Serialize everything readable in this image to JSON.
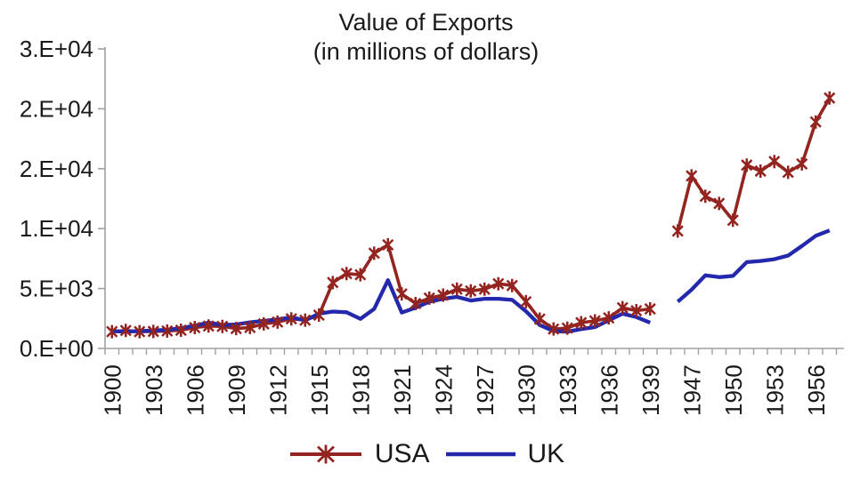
{
  "title": {
    "line1": "Value of Exports",
    "line2": "(in millions of dollars)"
  },
  "colors": {
    "usa": "#93241F",
    "uk": "#2428AC",
    "axis": "#A0A0A0",
    "text": "#1A1A1A",
    "background": "#FFFFFF"
  },
  "chart_data": {
    "type": "line",
    "title": "Value of Exports",
    "subtitle": "(in millions of dollars)",
    "grid": false,
    "legend_position": "bottom",
    "x_categories": [
      1900,
      1901,
      1902,
      1903,
      1904,
      1905,
      1906,
      1907,
      1908,
      1909,
      1910,
      1911,
      1912,
      1913,
      1914,
      1915,
      1916,
      1917,
      1918,
      1919,
      1920,
      1921,
      1922,
      1923,
      1924,
      1925,
      1926,
      1927,
      1928,
      1929,
      1930,
      1931,
      1932,
      1933,
      1934,
      1935,
      1936,
      1937,
      1938,
      1939,
      1945,
      1946,
      1947,
      1948,
      1949,
      1950,
      1951,
      1952,
      1953,
      1954,
      1955,
      1956,
      1957
    ],
    "x_label_interval": 3,
    "x_tick_labels_shown": [
      "1900",
      "1903",
      "1906",
      "1909",
      "1912",
      "1915",
      "1918",
      "1921",
      "1924",
      "1927",
      "1930",
      "1933",
      "1936",
      "1939",
      "1947",
      "1950",
      "1953",
      "1956"
    ],
    "y_axis": {
      "min": 0,
      "max": 25000,
      "tick_step": 5000,
      "tick_values": [
        0,
        5000,
        10000,
        15000,
        20000,
        25000
      ],
      "tick_labels": [
        "0.E+00",
        "5.E+03",
        "1.E+04",
        "2.E+04",
        "2.E+04",
        "3.E+04"
      ]
    },
    "series": [
      {
        "name": "USA",
        "color": "#93241F",
        "marker": "asterisk",
        "values": [
          1400,
          1500,
          1400,
          1420,
          1460,
          1520,
          1740,
          1870,
          1840,
          1660,
          1750,
          2050,
          2200,
          2470,
          2360,
          2780,
          5500,
          6250,
          6150,
          7950,
          8650,
          4550,
          3750,
          4200,
          4450,
          4950,
          4800,
          4950,
          5400,
          5250,
          3900,
          2450,
          1620,
          1700,
          2150,
          2300,
          2550,
          3400,
          3150,
          3300,
          null,
          9800,
          14400,
          12700,
          12100,
          10700,
          15300,
          14800,
          15600,
          14700,
          15400,
          18900,
          20900
        ]
      },
      {
        "name": "UK",
        "color": "#2428AC",
        "marker": "none",
        "values": [
          1450,
          1400,
          1450,
          1500,
          1560,
          1700,
          1900,
          2150,
          1960,
          2000,
          2180,
          2300,
          2420,
          2600,
          2350,
          2900,
          3080,
          3020,
          2470,
          3300,
          5700,
          3000,
          3400,
          3900,
          4150,
          4300,
          4000,
          4150,
          4150,
          4050,
          3100,
          1950,
          1450,
          1400,
          1620,
          1780,
          2350,
          2900,
          2620,
          2150,
          null,
          3900,
          4900,
          6100,
          5950,
          6050,
          7200,
          7300,
          7450,
          7750,
          8550,
          9400,
          9850
        ]
      }
    ]
  },
  "legend": {
    "usa_label": "USA",
    "uk_label": "UK"
  }
}
